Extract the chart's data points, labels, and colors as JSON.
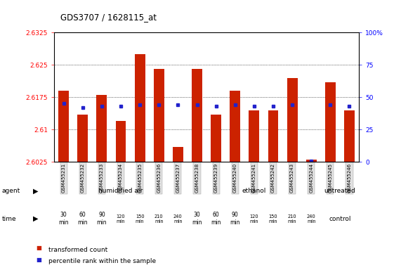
{
  "title": "GDS3707 / 1628115_at",
  "samples": [
    "GSM455231",
    "GSM455232",
    "GSM455233",
    "GSM455234",
    "GSM455235",
    "GSM455236",
    "GSM455237",
    "GSM455238",
    "GSM455239",
    "GSM455240",
    "GSM455241",
    "GSM455242",
    "GSM455243",
    "GSM455244",
    "GSM455245",
    "GSM455246"
  ],
  "transformed_count": [
    2.619,
    2.6135,
    2.618,
    2.612,
    2.6275,
    2.624,
    2.606,
    2.624,
    2.6135,
    2.619,
    2.6145,
    2.6145,
    2.622,
    2.603,
    2.621,
    2.6145
  ],
  "percentile_rank": [
    45,
    42,
    43,
    43,
    44,
    44,
    44,
    44,
    43,
    44,
    43,
    43,
    44,
    1,
    44,
    43
  ],
  "ymin": 2.6025,
  "ymax": 2.6325,
  "yticks_left": [
    2.6025,
    2.61,
    2.6175,
    2.625,
    2.6325
  ],
  "ytick_labels_left": [
    "2.6025",
    "2.61",
    "2.6175",
    "2.625",
    "2.6325"
  ],
  "yticks_right": [
    0,
    25,
    50,
    75,
    100
  ],
  "ytick_labels_right": [
    "0",
    "25",
    "50",
    "75",
    "100%"
  ],
  "yright_min": 0,
  "yright_max": 100,
  "bar_color": "#cc2200",
  "dot_color": "#2222cc",
  "agent_groups": [
    {
      "label": "humidified air",
      "start": 0,
      "end": 7,
      "color": "#ccffcc"
    },
    {
      "label": "ethanol",
      "start": 7,
      "end": 14,
      "color": "#ee99ee"
    },
    {
      "label": "untreated",
      "start": 14,
      "end": 16,
      "color": "#66ff66"
    }
  ],
  "time_labels": [
    "30\nmin",
    "60\nmin",
    "90\nmin",
    "120\nmin",
    "150\nmin",
    "210\nmin",
    "240\nmin",
    "30\nmin",
    "60\nmin",
    "90\nmin",
    "120\nmin",
    "150\nmin",
    "210\nmin",
    "240\nmin"
  ],
  "time_colors": [
    "#ffffff",
    "#ffffff",
    "#ffffff",
    "#ff99ff",
    "#ff99ff",
    "#ff99ff",
    "#ff99ff",
    "#ffffff",
    "#ffffff",
    "#ffffff",
    "#ff99ff",
    "#ff99ff",
    "#ff99ff",
    "#ff99ff"
  ],
  "control_color": "#ffccff",
  "legend_items": [
    {
      "color": "#cc2200",
      "label": "transformed count"
    },
    {
      "color": "#2222cc",
      "label": "percentile rank within the sample"
    }
  ]
}
